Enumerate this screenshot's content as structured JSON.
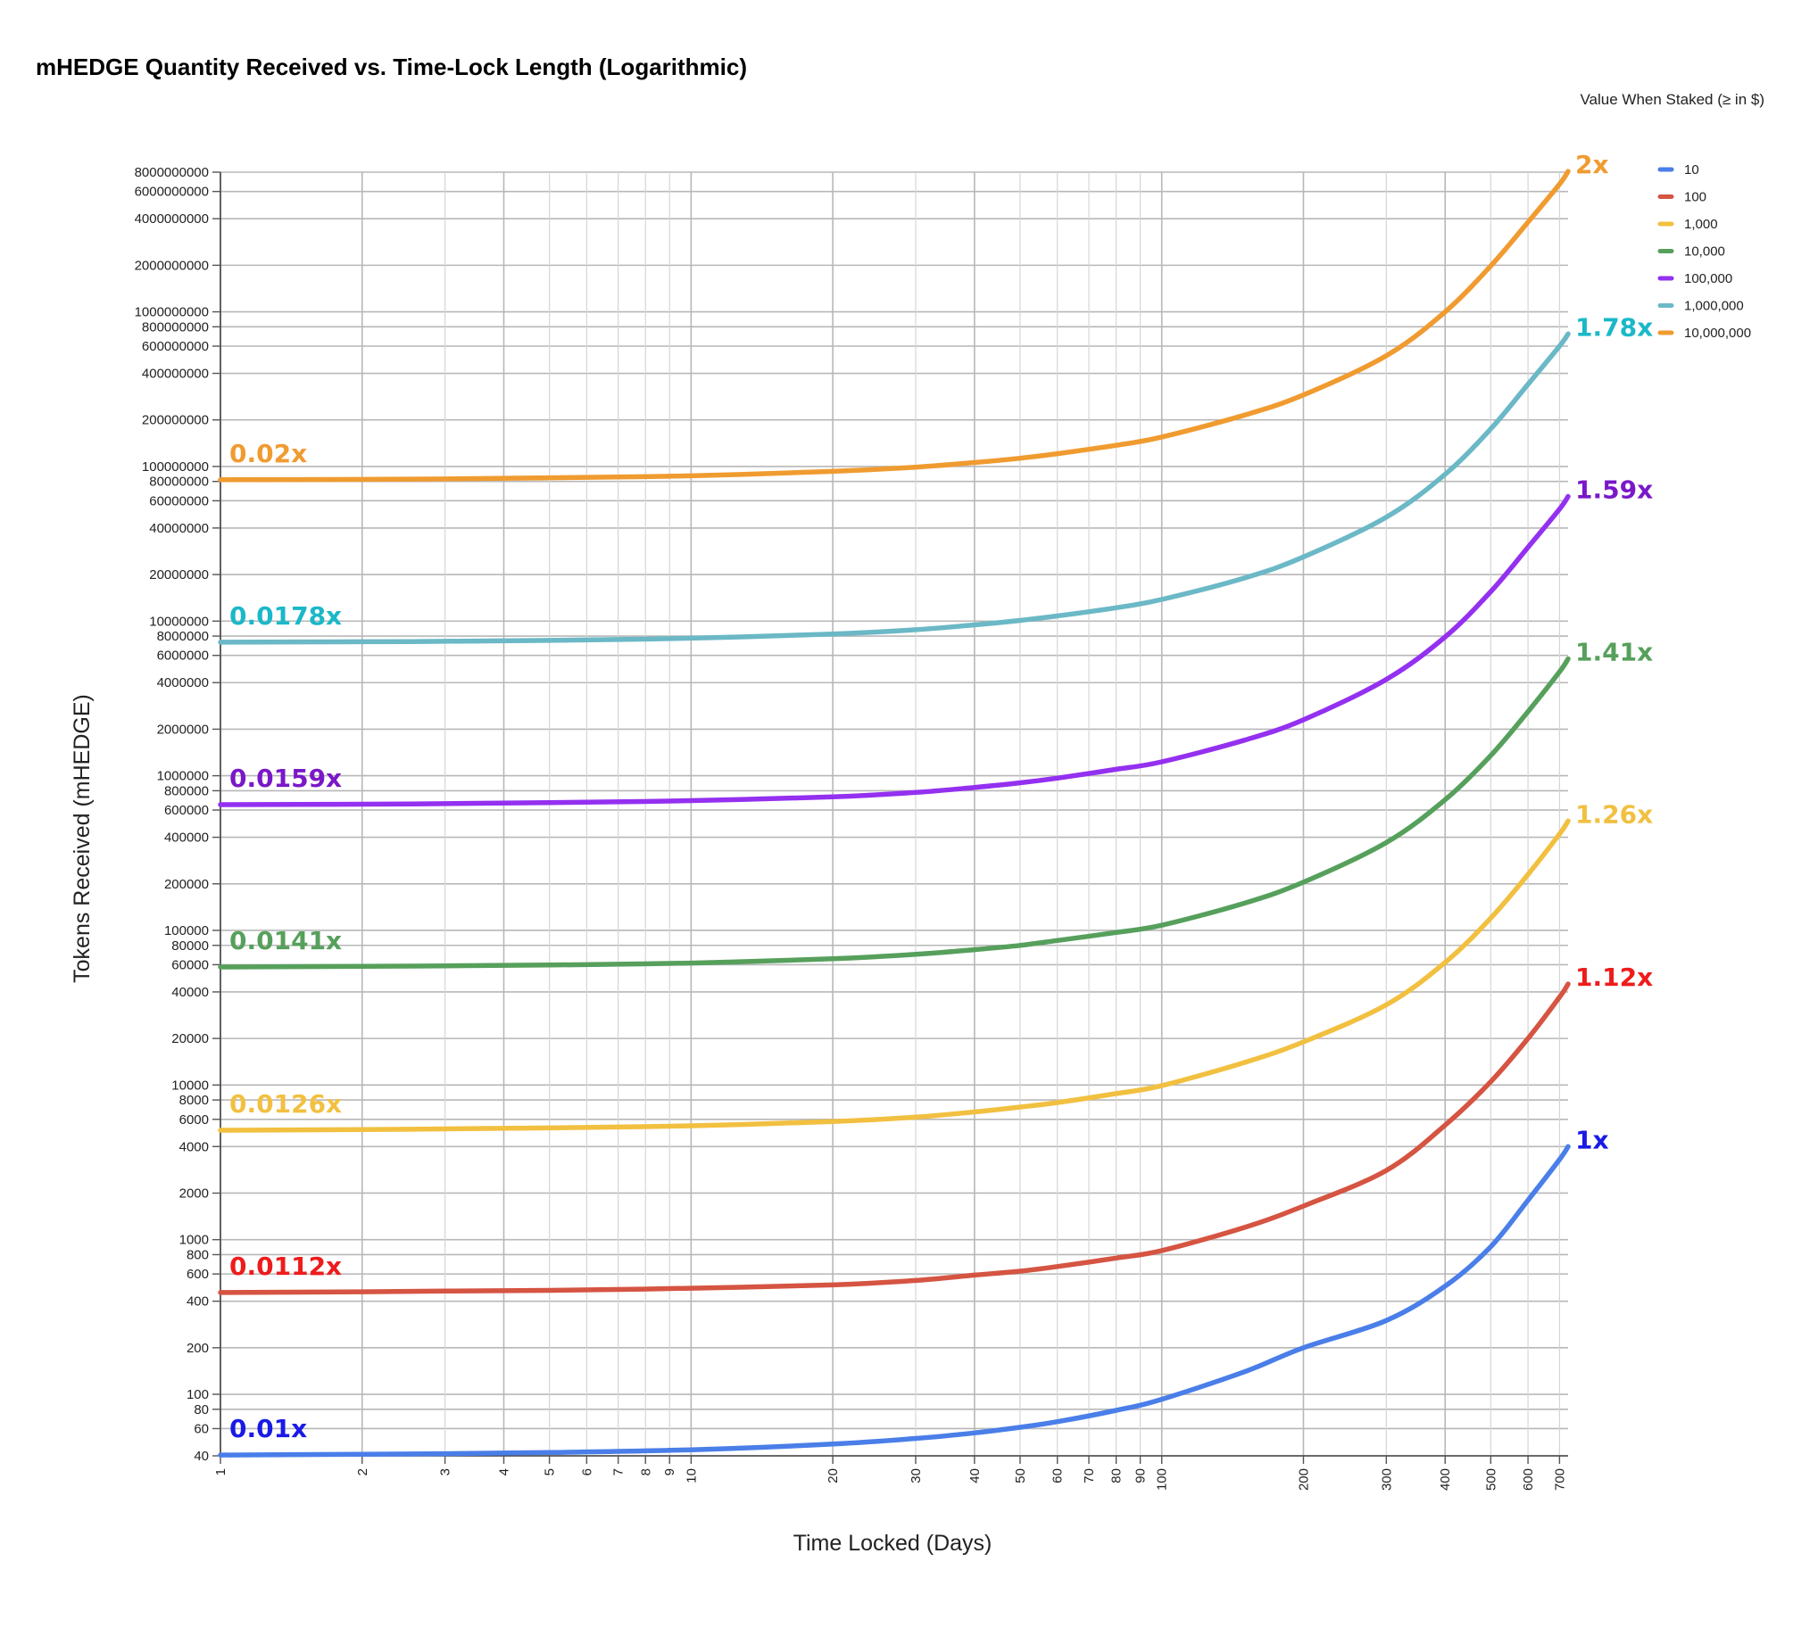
{
  "chart_data": {
    "type": "line",
    "title": "mHEDGE Quantity Received vs. Time-Lock Length (Logarithmic)",
    "xlabel": "Time Locked (Days)",
    "ylabel": "Tokens Received (mHEDGE)",
    "x_scale": "log",
    "y_scale": "log",
    "xlim": [
      1,
      730
    ],
    "ylim": [
      40,
      8000000000
    ],
    "grid": true,
    "x_ticks": [
      "1",
      "2",
      "3",
      "4",
      "5",
      "6",
      "7",
      "8",
      "9",
      "10",
      "20",
      "30",
      "40",
      "50",
      "60",
      "70",
      "80",
      "90",
      "100",
      "200",
      "300",
      "400",
      "500",
      "600",
      "700"
    ],
    "y_ticks": [
      "40",
      "60",
      "80",
      "100",
      "200",
      "400",
      "600",
      "800",
      "1000",
      "2000",
      "4000",
      "6000",
      "8000",
      "10000",
      "20000",
      "40000",
      "60000",
      "80000",
      "100000",
      "200000",
      "400000",
      "600000",
      "800000",
      "1000000",
      "2000000",
      "4000000",
      "6000000",
      "8000000",
      "10000000",
      "20000000",
      "40000000",
      "60000000",
      "80000000",
      "100000000",
      "200000000",
      "400000000",
      "600000000",
      "800000000",
      "1000000000",
      "2000000000",
      "4000000000",
      "6000000000",
      "8000000000"
    ],
    "legend_title": "Value When Staked (≥ in $)",
    "legend_position": "top-right",
    "x": [
      1,
      2,
      3,
      5,
      10,
      20,
      30,
      40,
      50,
      60,
      80,
      100,
      150,
      200,
      300,
      400,
      500,
      600,
      700,
      730
    ],
    "series": [
      {
        "name": "10",
        "color": "#4a7ee8",
        "values": [
          40.5,
          40.9,
          41.3,
          42.0,
          43.8,
          47.7,
          51.8,
          56.3,
          61.2,
          66.5,
          78.7,
          92.8,
          140,
          200,
          300,
          500,
          900,
          1800,
          3300,
          4000
        ]
      },
      {
        "name": "100",
        "color": "#d55442",
        "values": [
          455,
          460,
          465,
          470,
          485,
          510,
          545,
          590,
          625,
          670,
          760,
          850,
          1200,
          1650,
          2800,
          5500,
          10500,
          20000,
          37000,
          45000
        ]
      },
      {
        "name": "1,000",
        "color": "#f2c040",
        "values": [
          5100,
          5150,
          5200,
          5280,
          5450,
          5800,
          6200,
          6700,
          7200,
          7700,
          8800,
          9900,
          14000,
          19000,
          33000,
          62000,
          120000,
          230000,
          420000,
          510000
        ]
      },
      {
        "name": "10,000",
        "color": "#56a05c",
        "values": [
          58000,
          58500,
          59000,
          59700,
          61500,
          65500,
          70000,
          75000,
          80000,
          86000,
          97000,
          108000,
          150000,
          205000,
          370000,
          700000,
          1350000,
          2600000,
          4700000,
          5700000
        ]
      },
      {
        "name": "100,000",
        "color": "#9430f0",
        "values": [
          650000,
          655000,
          660000,
          670000,
          690000,
          730000,
          780000,
          840000,
          900000,
          965000,
          1100000,
          1230000,
          1700000,
          2300000,
          4200000,
          7900000,
          15500000,
          30000000,
          53000000,
          64000000
        ]
      },
      {
        "name": "1,000,000",
        "color": "#6bb8c6",
        "values": [
          7300000,
          7350000,
          7400000,
          7500000,
          7750000,
          8250000,
          8800000,
          9450000,
          10100000,
          10800000,
          12200000,
          13800000,
          19000000,
          26000000,
          47000000,
          89000000,
          175000000,
          340000000,
          600000000,
          720000000
        ]
      },
      {
        "name": "10,000,000",
        "color": "#f09b30",
        "values": [
          82000000,
          82500000,
          83000000,
          84500000,
          87000000,
          93000000,
          99000000,
          106000000,
          113000000,
          121000000,
          137000000,
          155000000,
          215000000,
          290000000,
          520000000,
          1000000000,
          1980000000,
          3800000000,
          6700000000,
          8100000000
        ]
      }
    ],
    "annotations": {
      "start": [
        {
          "text": "0.01x",
          "color": "#1a1ae6"
        },
        {
          "text": "0.0112x",
          "color": "#ee1c1c"
        },
        {
          "text": "0.0126x",
          "color": "#f2c040"
        },
        {
          "text": "0.0141x",
          "color": "#56a05c"
        },
        {
          "text": "0.0159x",
          "color": "#7a18c8"
        },
        {
          "text": "0.0178x",
          "color": "#1ab8c8"
        },
        {
          "text": "0.02x",
          "color": "#f09b30"
        }
      ],
      "end": [
        {
          "text": "1x",
          "color": "#1a1ae6"
        },
        {
          "text": "1.12x",
          "color": "#ee1c1c"
        },
        {
          "text": "1.26x",
          "color": "#f2c040"
        },
        {
          "text": "1.41x",
          "color": "#56a05c"
        },
        {
          "text": "1.59x",
          "color": "#7a18c8"
        },
        {
          "text": "1.78x",
          "color": "#1ab8c8"
        },
        {
          "text": "2x",
          "color": "#f09b30"
        }
      ]
    }
  }
}
